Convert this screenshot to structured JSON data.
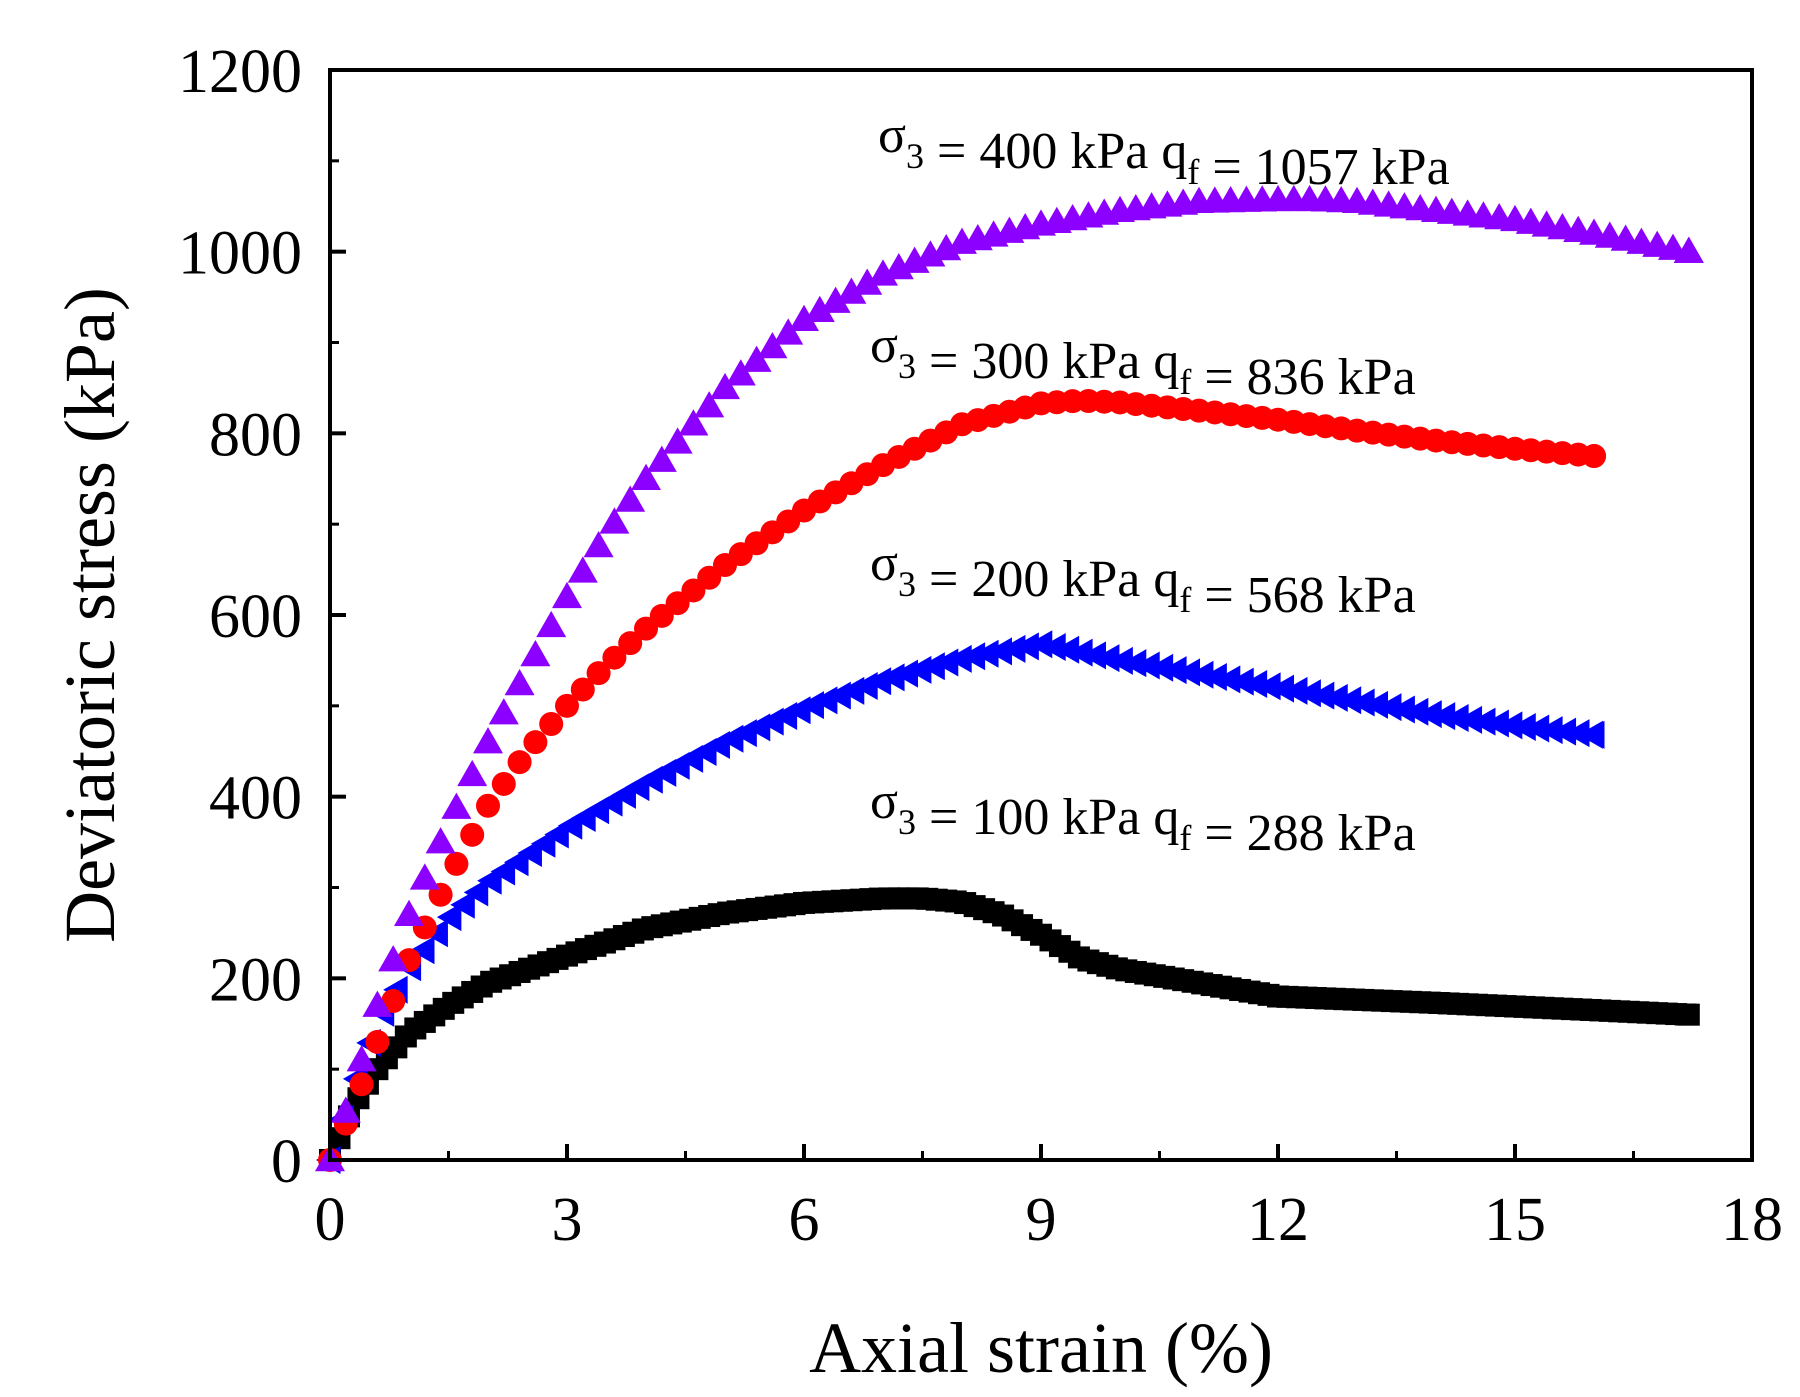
{
  "chart_data": {
    "type": "scatter",
    "title": "",
    "xlabel": "Axial strain (%)",
    "ylabel": "Deviatoric stress (kPa)",
    "xlim": [
      0,
      18
    ],
    "ylim": [
      0,
      1200
    ],
    "xticks": [
      "0",
      "3",
      "6",
      "9",
      "12",
      "15",
      "18"
    ],
    "yticks": [
      "0",
      "200",
      "400",
      "600",
      "800",
      "1000",
      "1200"
    ],
    "grid": false,
    "series": [
      {
        "name": "σ3 = 100 kPa",
        "marker": "square",
        "color": "#000000",
        "annotation": {
          "sigma": "σ",
          "sigma_sub": "3",
          "sigma_value": " = 100 kPa",
          "q": "q",
          "q_sub": "f",
          "q_value": " = 288 kPa"
        },
        "x": [
          0,
          0.3,
          0.6,
          1.0,
          1.5,
          2.0,
          3.0,
          4.0,
          5.0,
          6.0,
          7.0,
          7.5,
          8.0,
          8.5,
          9.0,
          9.5,
          10.0,
          11.0,
          12.0,
          14.0,
          16.0,
          17.2
        ],
        "y": [
          0,
          60,
          100,
          140,
          170,
          195,
          225,
          255,
          272,
          283,
          288,
          288,
          284,
          270,
          248,
          222,
          210,
          195,
          180,
          173,
          165,
          160
        ]
      },
      {
        "name": "σ3 = 200 kPa",
        "marker": "triangle-left",
        "color": "#0000ff",
        "annotation": {
          "sigma": "σ",
          "sigma_sub": "3",
          "sigma_value": " = 200 kPa",
          "q": "q",
          "q_sub": "f",
          "q_value": " = 568 kPa"
        },
        "x": [
          0,
          0.3,
          0.6,
          1.0,
          1.5,
          2.0,
          3.0,
          4.0,
          5.0,
          6.0,
          7.0,
          8.0,
          9.0,
          10.0,
          11.0,
          12.0,
          13.0,
          14.0,
          15.0,
          16.0
        ],
        "y": [
          0,
          80,
          150,
          210,
          265,
          305,
          365,
          415,
          460,
          497,
          528,
          552,
          568,
          550,
          535,
          520,
          505,
          490,
          478,
          468
        ]
      },
      {
        "name": "σ3 = 300 kPa",
        "marker": "circle",
        "color": "#ff0000",
        "annotation": {
          "sigma": "σ",
          "sigma_sub": "3",
          "sigma_value": " = 300 kPa",
          "q": "q",
          "q_sub": "f",
          "q_value": " = 836 kPa"
        },
        "x": [
          0,
          0.3,
          0.6,
          1.0,
          1.5,
          2.0,
          2.5,
          3.0,
          3.5,
          4.0,
          5.0,
          6.0,
          7.0,
          8.0,
          9.0,
          9.5,
          10.0,
          11.0,
          12.0,
          13.0,
          14.0,
          15.0,
          16.0
        ],
        "y": [
          0,
          60,
          130,
          220,
          310,
          390,
          450,
          500,
          545,
          585,
          655,
          715,
          765,
          810,
          833,
          836,
          834,
          825,
          815,
          803,
          792,
          783,
          775
        ]
      },
      {
        "name": "σ3 = 400 kPa",
        "marker": "triangle-up",
        "color": "#8b00ff",
        "annotation": {
          "sigma": "σ",
          "sigma_sub": "3",
          "sigma_value": " = 400 kPa",
          "q": "q",
          "q_sub": "f",
          "q_value": " = 1057 kPa"
        },
        "x": [
          0,
          0.3,
          0.6,
          1.0,
          1.5,
          2.0,
          2.5,
          3.0,
          3.5,
          4.0,
          5.0,
          6.0,
          7.0,
          8.0,
          9.0,
          10.0,
          11.0,
          12.0,
          12.5,
          13.0,
          14.0,
          15.0,
          16.0,
          17.2
        ],
        "y": [
          0,
          80,
          170,
          270,
          370,
          460,
          540,
          620,
          690,
          750,
          850,
          925,
          975,
          1010,
          1030,
          1045,
          1055,
          1057,
          1057,
          1055,
          1045,
          1035,
          1020,
          1000
        ]
      }
    ]
  }
}
